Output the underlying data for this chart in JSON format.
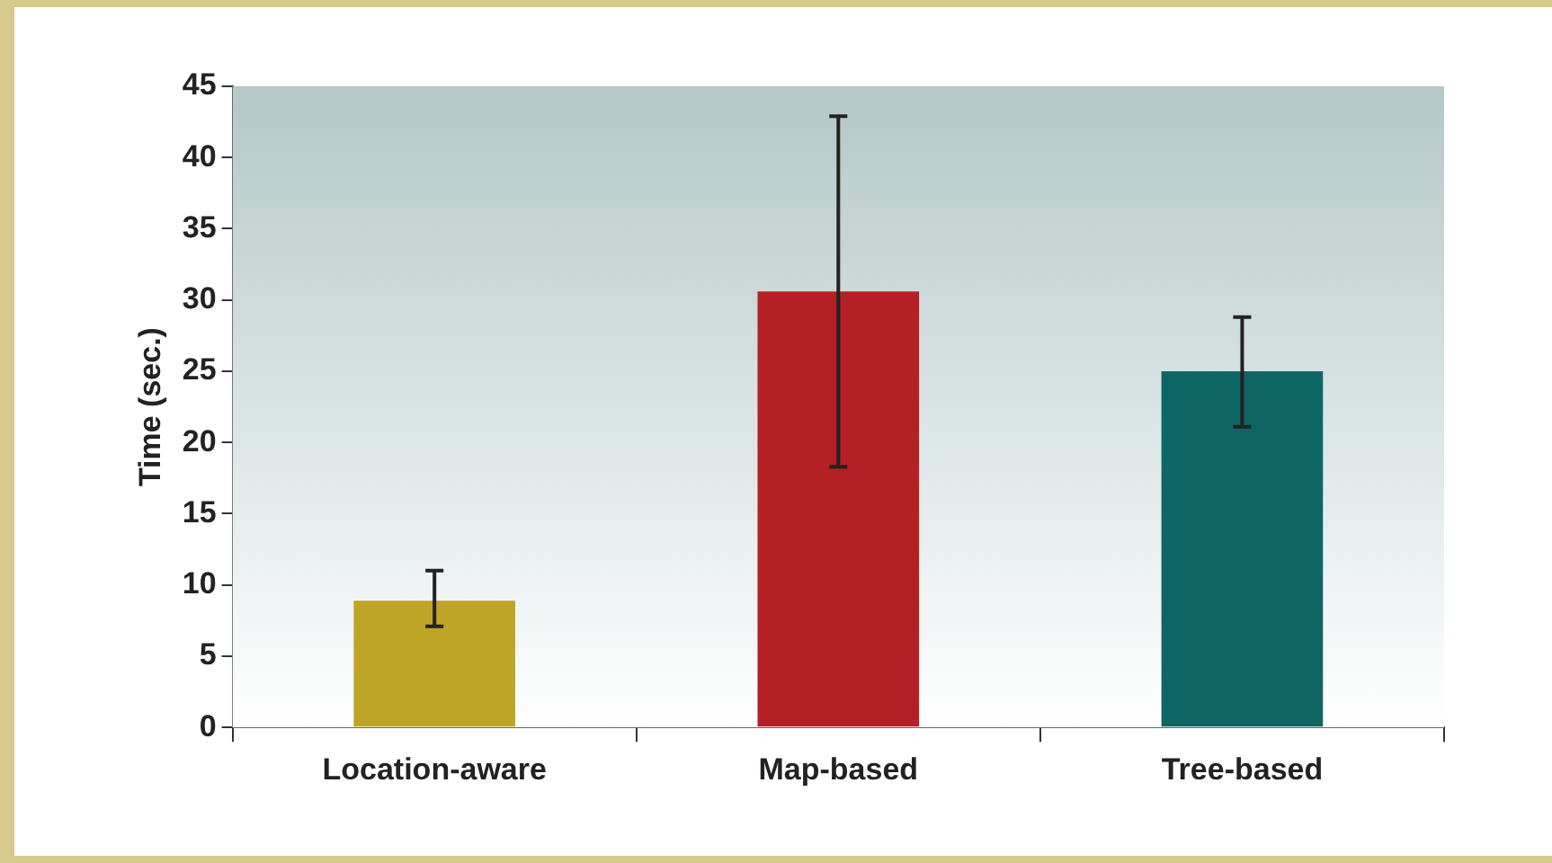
{
  "chart_data": {
    "type": "bar",
    "ylabel": "Time (sec.)",
    "categories": [
      "Location-aware",
      "Map-based",
      "Tree-based"
    ],
    "values": [
      8.9,
      30.6,
      25.0
    ],
    "colors": [
      "#bfa526",
      "#b52025",
      "#0e6664"
    ],
    "errors": [
      [
        7.1,
        11.0
      ],
      [
        18.3,
        42.9
      ],
      [
        21.1,
        28.8
      ]
    ],
    "ylim": [
      0,
      45
    ],
    "yticks": [
      0,
      5,
      10,
      15,
      20,
      25,
      30,
      35,
      40,
      45
    ],
    "grid": false,
    "legend": false
  }
}
